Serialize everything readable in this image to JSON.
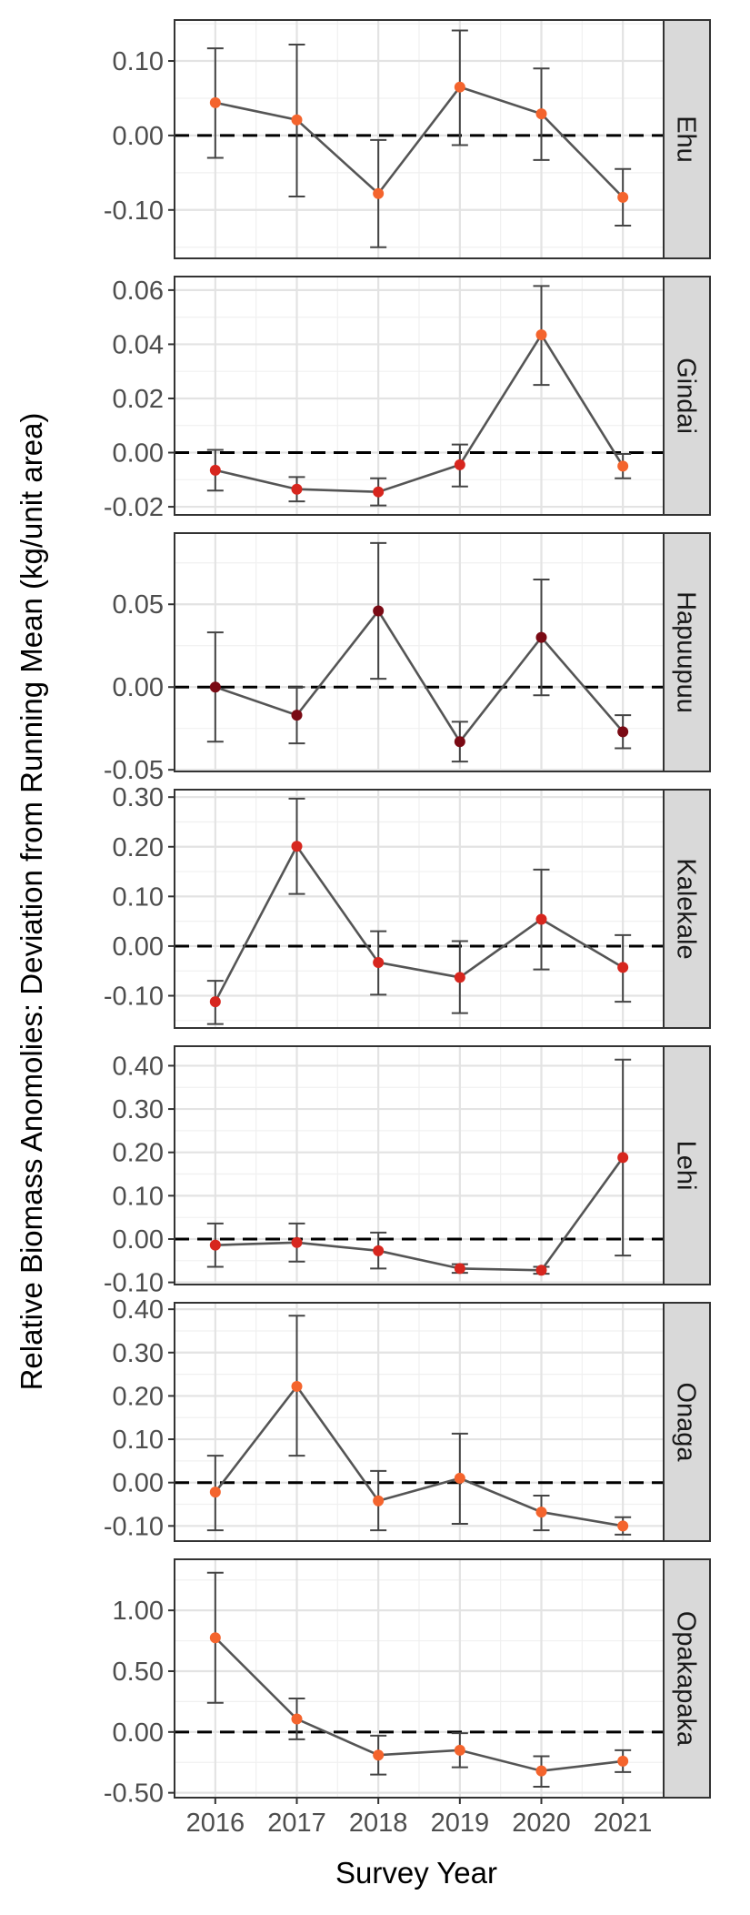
{
  "chart_data": {
    "type": "line",
    "xlabel": "Survey Year",
    "ylabel": "Relative Biomass Anomolies: Deviation from Running Mean (kg/unit area)",
    "x": [
      "2016",
      "2017",
      "2018",
      "2019",
      "2020",
      "2021"
    ],
    "reference_line": 0,
    "colors": {
      "line": "#555555",
      "errorbar": "#444444",
      "zero_line": "#000000",
      "strip_fill": "#d9d9d9",
      "point_orange": "#f4642d",
      "point_red": "#d7261e",
      "point_darkred": "#7a0a14"
    },
    "panels": [
      {
        "name": "Ehu",
        "ylim": [
          -0.165,
          0.155
        ],
        "ticks": [
          -0.1,
          0.0,
          0.1
        ],
        "tick_labels": [
          "-0.10",
          "0.00",
          "0.10"
        ],
        "values": [
          0.044,
          0.021,
          -0.078,
          0.065,
          0.029,
          -0.083
        ],
        "err_low": [
          -0.03,
          -0.082,
          -0.15,
          -0.013,
          -0.033,
          -0.121
        ],
        "err_high": [
          0.117,
          0.122,
          -0.006,
          0.141,
          0.09,
          -0.045
        ],
        "point_colors": [
          "#f4642d",
          "#f4642d",
          "#f4642d",
          "#f4642d",
          "#f4642d",
          "#f4642d"
        ]
      },
      {
        "name": "Gindai",
        "ylim": [
          -0.023,
          0.065
        ],
        "ticks": [
          -0.02,
          0.0,
          0.02,
          0.04,
          0.06
        ],
        "tick_labels": [
          "-0.02",
          "0.00",
          "0.02",
          "0.04",
          "0.06"
        ],
        "values": [
          -0.0065,
          -0.0135,
          -0.0145,
          -0.0045,
          0.0435,
          -0.005
        ],
        "err_low": [
          -0.014,
          -0.018,
          -0.0195,
          -0.0125,
          0.025,
          -0.0095
        ],
        "err_high": [
          0.001,
          -0.009,
          -0.0095,
          0.003,
          0.0615,
          -0.0005
        ],
        "point_colors": [
          "#d7261e",
          "#d7261e",
          "#d7261e",
          "#d7261e",
          "#f4642d",
          "#f4642d"
        ]
      },
      {
        "name": "Hapuupuu",
        "ylim": [
          -0.051,
          0.093
        ],
        "ticks": [
          -0.05,
          0.0,
          0.05
        ],
        "tick_labels": [
          "-0.05",
          "0.00",
          "0.05"
        ],
        "values": [
          0.0,
          -0.017,
          0.046,
          -0.033,
          0.03,
          -0.027
        ],
        "err_low": [
          -0.033,
          -0.034,
          0.005,
          -0.045,
          -0.005,
          -0.037
        ],
        "err_high": [
          0.033,
          0.0,
          0.087,
          -0.021,
          0.065,
          -0.017
        ],
        "point_colors": [
          "#7a0a14",
          "#7a0a14",
          "#7a0a14",
          "#7a0a14",
          "#7a0a14",
          "#7a0a14"
        ]
      },
      {
        "name": "Kalekale",
        "ylim": [
          -0.165,
          0.315
        ],
        "ticks": [
          -0.1,
          0.0,
          0.1,
          0.2,
          0.3
        ],
        "tick_labels": [
          "-0.10",
          "0.00",
          "0.10",
          "0.20",
          "0.30"
        ],
        "values": [
          -0.112,
          0.201,
          -0.033,
          -0.063,
          0.054,
          -0.043
        ],
        "err_low": [
          -0.157,
          0.105,
          -0.098,
          -0.135,
          -0.047,
          -0.112
        ],
        "err_high": [
          -0.07,
          0.297,
          0.03,
          0.01,
          0.154,
          0.022
        ],
        "point_colors": [
          "#d7261e",
          "#d7261e",
          "#d7261e",
          "#d7261e",
          "#d7261e",
          "#d7261e"
        ]
      },
      {
        "name": "Lehi",
        "ylim": [
          -0.105,
          0.445
        ],
        "ticks": [
          -0.1,
          0.0,
          0.1,
          0.2,
          0.3,
          0.4
        ],
        "tick_labels": [
          "-0.10",
          "0.00",
          "0.10",
          "0.20",
          "0.30",
          "0.40"
        ],
        "values": [
          -0.014,
          -0.008,
          -0.027,
          -0.068,
          -0.072,
          0.188
        ],
        "err_low": [
          -0.064,
          -0.052,
          -0.068,
          -0.078,
          -0.08,
          -0.038
        ],
        "err_high": [
          0.036,
          0.036,
          0.015,
          -0.058,
          -0.064,
          0.414
        ],
        "point_colors": [
          "#d7261e",
          "#d7261e",
          "#d7261e",
          "#d7261e",
          "#d7261e",
          "#d7261e"
        ]
      },
      {
        "name": "Onaga",
        "ylim": [
          -0.135,
          0.415
        ],
        "ticks": [
          -0.1,
          0.0,
          0.1,
          0.2,
          0.3,
          0.4
        ],
        "tick_labels": [
          "-0.10",
          "0.00",
          "0.10",
          "0.20",
          "0.30",
          "0.40"
        ],
        "values": [
          -0.022,
          0.222,
          -0.042,
          0.01,
          -0.068,
          -0.1
        ],
        "err_low": [
          -0.11,
          0.062,
          -0.11,
          -0.095,
          -0.11,
          -0.12
        ],
        "err_high": [
          0.062,
          0.385,
          0.027,
          0.113,
          -0.03,
          -0.08
        ],
        "point_colors": [
          "#f4642d",
          "#f4642d",
          "#f4642d",
          "#f4642d",
          "#f4642d",
          "#f4642d"
        ]
      },
      {
        "name": "Opakapaka",
        "ylim": [
          -0.54,
          1.42
        ],
        "ticks": [
          -0.5,
          0.0,
          0.5,
          1.0
        ],
        "tick_labels": [
          "-0.50",
          "0.00",
          "0.50",
          "1.00"
        ],
        "values": [
          0.775,
          0.107,
          -0.19,
          -0.15,
          -0.32,
          -0.24
        ],
        "err_low": [
          0.24,
          -0.06,
          -0.35,
          -0.29,
          -0.45,
          -0.33
        ],
        "err_high": [
          1.31,
          0.275,
          -0.03,
          -0.01,
          -0.2,
          -0.15
        ],
        "point_colors": [
          "#f4642d",
          "#f4642d",
          "#f4642d",
          "#f4642d",
          "#f4642d",
          "#f4642d"
        ]
      }
    ]
  }
}
